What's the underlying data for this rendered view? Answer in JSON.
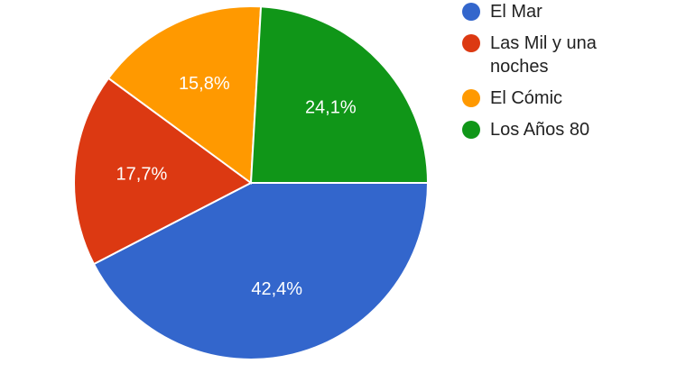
{
  "chart_data": {
    "type": "pie",
    "title": "",
    "categories": [
      "El Mar",
      "Las Mil y una noches",
      "El Cómic",
      "Los Años 80"
    ],
    "values": [
      42.4,
      17.7,
      15.8,
      24.1
    ],
    "value_labels": [
      "42,4%",
      "17,7%",
      "15,8%",
      "24,1%"
    ],
    "colors": [
      "#3366cc",
      "#dc3912",
      "#ff9900",
      "#109618"
    ],
    "legend_position": "right"
  },
  "legend": {
    "items": [
      {
        "label": "El Mar",
        "color": "#3366cc"
      },
      {
        "label": "Las Mil y una noches",
        "color": "#dc3912"
      },
      {
        "label": "El Cómic",
        "color": "#ff9900"
      },
      {
        "label": "Los Años 80",
        "color": "#109618"
      }
    ]
  }
}
